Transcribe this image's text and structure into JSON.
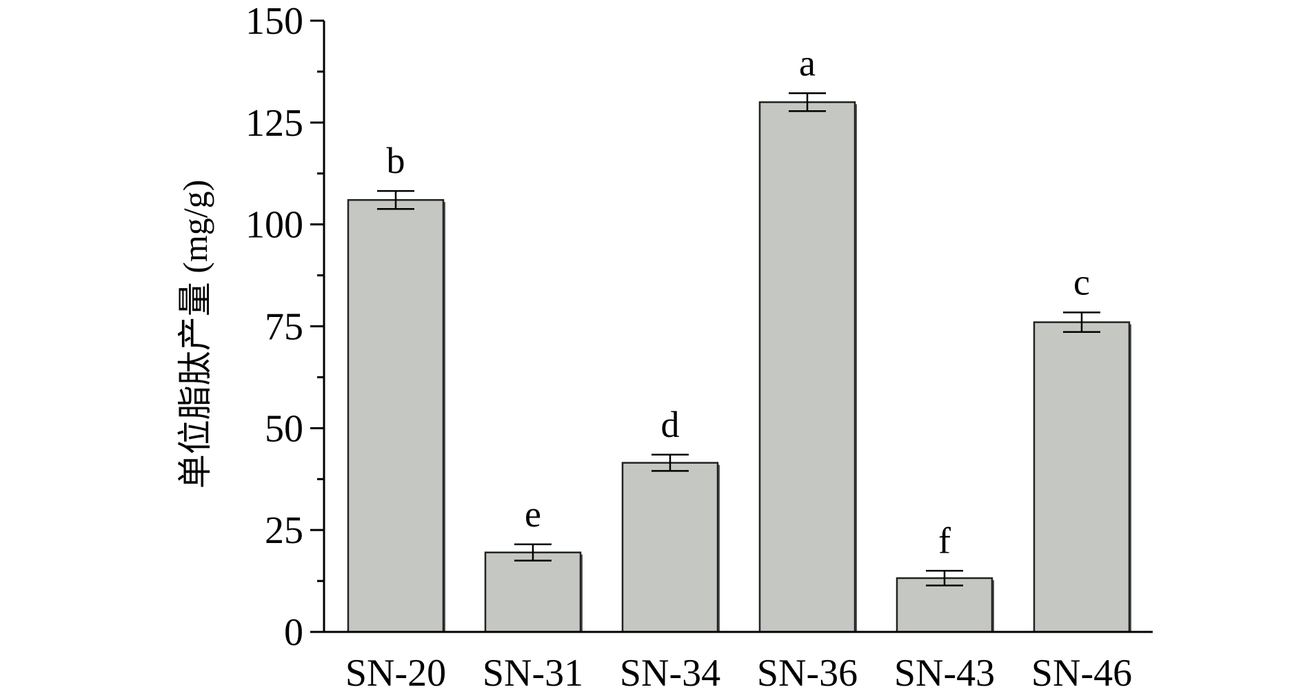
{
  "chart_data": {
    "type": "bar",
    "title": "",
    "xlabel": "",
    "ylabel": "单位脂肽产量 (mg/g)",
    "ylim": [
      0,
      150
    ],
    "yticks": [
      0,
      25,
      50,
      75,
      100,
      125,
      150
    ],
    "categories": [
      "SN-20",
      "SN-31",
      "SN-34",
      "SN-36",
      "SN-43",
      "SN-46"
    ],
    "values": [
      106,
      19.5,
      41.5,
      130,
      13.2,
      76
    ],
    "errors": [
      2.2,
      2.0,
      2.0,
      2.2,
      1.8,
      2.4
    ],
    "significance": [
      "b",
      "e",
      "d",
      "a",
      "f",
      "c"
    ],
    "grid": false,
    "legend": "none",
    "colors": {
      "bar_fill": "#c4c7c2",
      "bar_stroke": "#222222",
      "axis": "#000000"
    }
  }
}
